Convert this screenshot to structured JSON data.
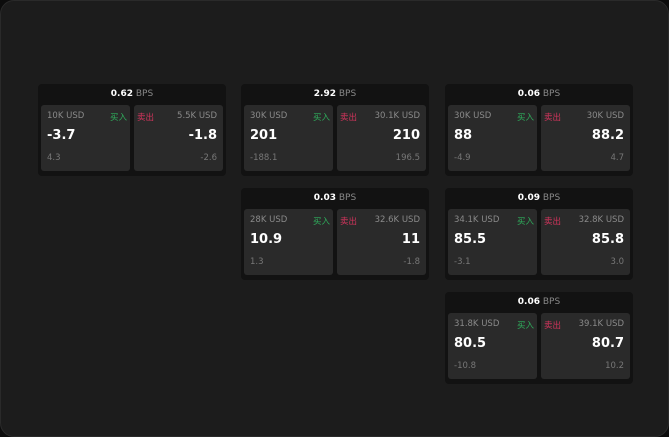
{
  "buy_label": "买入",
  "sell_label": "卖出",
  "unit": "BPS",
  "colors": {
    "buy": "#2fae5c",
    "sell": "#d2345c"
  },
  "panels": [
    {
      "spread": "0.62",
      "buy": {
        "size": "10K USD",
        "price": "-3.7",
        "change": "4.3"
      },
      "sell": {
        "size": "5.5K USD",
        "price": "-1.8",
        "change": "-2.6"
      }
    },
    {
      "spread": "2.92",
      "buy": {
        "size": "30K USD",
        "price": "201",
        "change": "-188.1"
      },
      "sell": {
        "size": "30.1K USD",
        "price": "210",
        "change": "196.5"
      }
    },
    {
      "spread": "0.06",
      "buy": {
        "size": "30K USD",
        "price": "88",
        "change": "-4.9"
      },
      "sell": {
        "size": "30K USD",
        "price": "88.2",
        "change": "4.7"
      }
    },
    {
      "spread": "0.03",
      "buy": {
        "size": "28K USD",
        "price": "10.9",
        "change": "1.3"
      },
      "sell": {
        "size": "32.6K USD",
        "price": "11",
        "change": "-1.8"
      }
    },
    {
      "spread": "0.09",
      "buy": {
        "size": "34.1K USD",
        "price": "85.5",
        "change": "-3.1"
      },
      "sell": {
        "size": "32.8K USD",
        "price": "85.8",
        "change": "3.0"
      }
    },
    {
      "spread": "0.06",
      "buy": {
        "size": "31.8K USD",
        "price": "80.5",
        "change": "-10.8"
      },
      "sell": {
        "size": "39.1K USD",
        "price": "80.7",
        "change": "10.2"
      }
    }
  ]
}
